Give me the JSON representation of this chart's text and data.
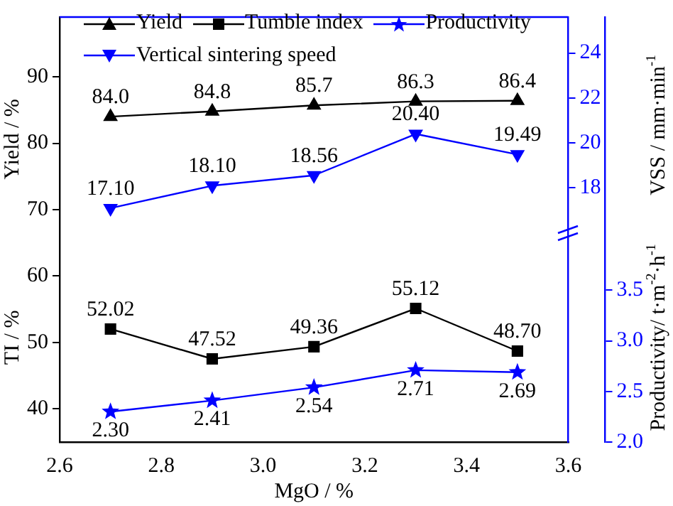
{
  "chart_data": {
    "type": "line",
    "xlabel": "MgO / %",
    "ylabel": "Yield / %",
    "y2label": "VSS / mm·min$^{-1}$",
    "y3label": "Productivity/ t·m$^{-2}$·h$^{-1}$",
    "annotations": [
      "TI / %"
    ],
    "x": [
      2.7,
      2.9,
      3.1,
      3.3,
      3.5
    ],
    "xlim": [
      2.6,
      3.6
    ],
    "xticks": [
      2.6,
      2.8,
      {
        "value": 3.0,
        "label": "3.0"
      },
      3.2,
      3.4,
      3.6
    ],
    "ylim": [
      35,
      99
    ],
    "yticks": [
      40,
      50,
      60,
      70,
      80,
      90
    ],
    "y2lim": [
      6.7,
      25.6
    ],
    "y2ticks": [
      18,
      20,
      22,
      24
    ],
    "y3lim": [
      2.0,
      6.2
    ],
    "y3ticks": [
      {
        "value": 2.0,
        "label": "2.0"
      },
      2.5,
      {
        "value": 3.0,
        "label": "3.0"
      },
      3.5
    ],
    "series": [
      {
        "name": "Yield",
        "color": "#000000",
        "marker": "triangle",
        "values": [
          84.0,
          84.8,
          85.7,
          86.3,
          86.4
        ],
        "value_labels": [
          "84.0",
          "84.8",
          "85.7",
          "86.3",
          "86.4"
        ]
      },
      {
        "name": "Tumble index",
        "color": "#000000",
        "marker": "square",
        "values": [
          52.02,
          47.52,
          49.36,
          55.12,
          48.7
        ],
        "value_labels": [
          "52.02",
          "47.52",
          "49.36",
          "55.12",
          "48.70"
        ]
      },
      {
        "name": "Productivity",
        "color": "#0000ff",
        "marker": "star",
        "axis": "y3",
        "values": [
          2.3,
          2.41,
          2.54,
          2.71,
          2.69
        ],
        "value_labels": [
          "2.30",
          "2.41",
          "2.54",
          "2.71",
          "2.69"
        ]
      },
      {
        "name": "Vertical sintering speed",
        "color": "#0000ff",
        "marker": "triangle-down",
        "axis": "y2",
        "values": [
          17.1,
          18.1,
          18.56,
          20.4,
          19.49
        ],
        "value_labels": [
          "17.10",
          "18.10",
          "18.56",
          "20.40",
          "19.49"
        ]
      }
    ],
    "legend": "top left",
    "grid": false,
    "line_style": "solid"
  }
}
